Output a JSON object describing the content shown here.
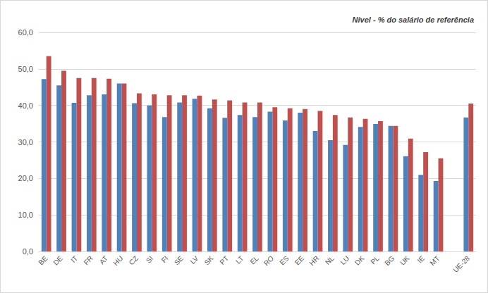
{
  "chart_data": {
    "type": "bar",
    "title": "Nivel - % do salário de referência",
    "categories": [
      "BE",
      "DE",
      "IT",
      "FR",
      "AT",
      "HU",
      "CZ",
      "SI",
      "FI",
      "SE",
      "LV",
      "SK",
      "PT",
      "LT",
      "EL",
      "RO",
      "ES",
      "EE",
      "HR",
      "NL",
      "LU",
      "DK",
      "PL",
      "BG",
      "UK",
      "IE",
      "MT",
      null,
      "UE-28"
    ],
    "series": [
      {
        "color": "#4f81bd",
        "values": [
          47.2,
          45.5,
          40.7,
          42.8,
          43.0,
          46.0,
          40.6,
          40.0,
          36.8,
          40.8,
          41.8,
          39.2,
          36.6,
          37.4,
          36.8,
          38.3,
          35.9,
          38.0,
          33.0,
          30.5,
          29.2,
          34.1,
          34.9,
          34.4,
          26.1,
          21.0,
          19.3,
          null,
          36.7
        ]
      },
      {
        "color": "#c0504d",
        "values": [
          53.5,
          49.5,
          47.5,
          47.5,
          47.3,
          46.0,
          43.3,
          43.0,
          42.8,
          42.8,
          42.7,
          41.6,
          41.4,
          40.8,
          40.8,
          39.5,
          39.2,
          39.0,
          38.5,
          37.4,
          36.7,
          36.3,
          35.7,
          34.4,
          30.9,
          27.2,
          25.5,
          null,
          40.5
        ]
      }
    ],
    "ylim": [
      0,
      60
    ],
    "yticks": [
      {
        "value": 0,
        "label": "0,0"
      },
      {
        "value": 10,
        "label": "10,0"
      },
      {
        "value": 20,
        "label": "20,0"
      },
      {
        "value": 30,
        "label": "30,0"
      },
      {
        "value": 40,
        "label": "40,0"
      },
      {
        "value": 50,
        "label": "50,0"
      },
      {
        "value": 60,
        "label": "60,0"
      }
    ],
    "grid": true
  }
}
